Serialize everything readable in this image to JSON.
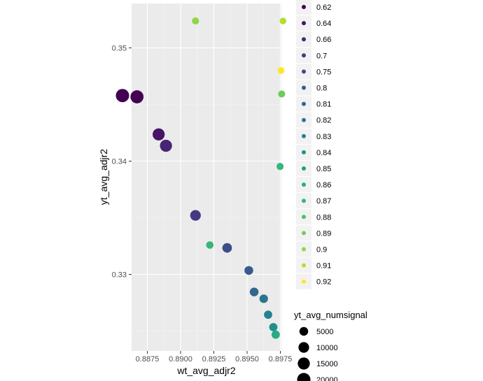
{
  "chart_data": {
    "type": "scatter",
    "title": "",
    "xlabel": "wt_avg_adjr2",
    "ylabel": "yt_avg_adjr2",
    "x_ticks": [
      "0.8875",
      "0.8900",
      "0.8925",
      "0.8950",
      "0.8975"
    ],
    "y_ticks": [
      "0.33",
      "0.34",
      "0.35"
    ],
    "grid": true,
    "legend_position": "right",
    "color_legend": {
      "labels": [
        "0.62",
        "0.64",
        "0.66",
        "0.7",
        "0.75",
        "0.8",
        "0.81",
        "0.82",
        "0.83",
        "0.84",
        "0.85",
        "0.86",
        "0.87",
        "0.88",
        "0.89",
        "0.9",
        "0.91",
        "0.92"
      ],
      "colors": [
        "#440154",
        "#471466",
        "#472575",
        "#443A83",
        "#3E4C8A",
        "#375B8D",
        "#31688E",
        "#2B758E",
        "#26828E",
        "#21908C",
        "#1F9E89",
        "#26AD81",
        "#35B779",
        "#4AC16D",
        "#6DCD59",
        "#90D743",
        "#B4DE2C",
        "#FDE725"
      ]
    },
    "size_legend": {
      "title": "yt_avg_numsignal",
      "labels": [
        "5000",
        "10000",
        "15000",
        "20000"
      ],
      "values": [
        5000,
        10000,
        15000,
        20000
      ]
    },
    "points": [
      {
        "x": 0.88563,
        "y": 0.34579,
        "color": "0.62",
        "size": 20000
      },
      {
        "x": 0.88672,
        "y": 0.34568,
        "color": "0.62",
        "size": 19000
      },
      {
        "x": 0.88835,
        "y": 0.34236,
        "color": "0.64",
        "size": 15000
      },
      {
        "x": 0.8889,
        "y": 0.34136,
        "color": "0.66",
        "size": 15000
      },
      {
        "x": 0.89112,
        "y": 0.33521,
        "color": "0.7",
        "size": 10000
      },
      {
        "x": 0.8935,
        "y": 0.33234,
        "color": "0.75",
        "size": 7000
      },
      {
        "x": 0.89513,
        "y": 0.33035,
        "color": "0.8",
        "size": 5000
      },
      {
        "x": 0.89553,
        "y": 0.32845,
        "color": "0.81",
        "size": 5000
      },
      {
        "x": 0.89625,
        "y": 0.32785,
        "color": "0.82",
        "size": 4500
      },
      {
        "x": 0.89658,
        "y": 0.32644,
        "color": "0.83",
        "size": 4000
      },
      {
        "x": 0.89697,
        "y": 0.32534,
        "color": "0.84",
        "size": 4000
      },
      {
        "x": 0.89715,
        "y": 0.32468,
        "color": "0.86",
        "size": 4000
      },
      {
        "x": 0.8922,
        "y": 0.33259,
        "color": "0.87",
        "size": 2500
      },
      {
        "x": 0.89748,
        "y": 0.33953,
        "color": "0.87",
        "size": 2000
      },
      {
        "x": 0.8976,
        "y": 0.34593,
        "color": "0.89",
        "size": 2000
      },
      {
        "x": 0.89112,
        "y": 0.35238,
        "color": "0.9",
        "size": 2000
      },
      {
        "x": 0.8977,
        "y": 0.35238,
        "color": "0.91",
        "size": 1500
      },
      {
        "x": 0.89755,
        "y": 0.348,
        "color": "0.92",
        "size": 1500
      }
    ]
  }
}
